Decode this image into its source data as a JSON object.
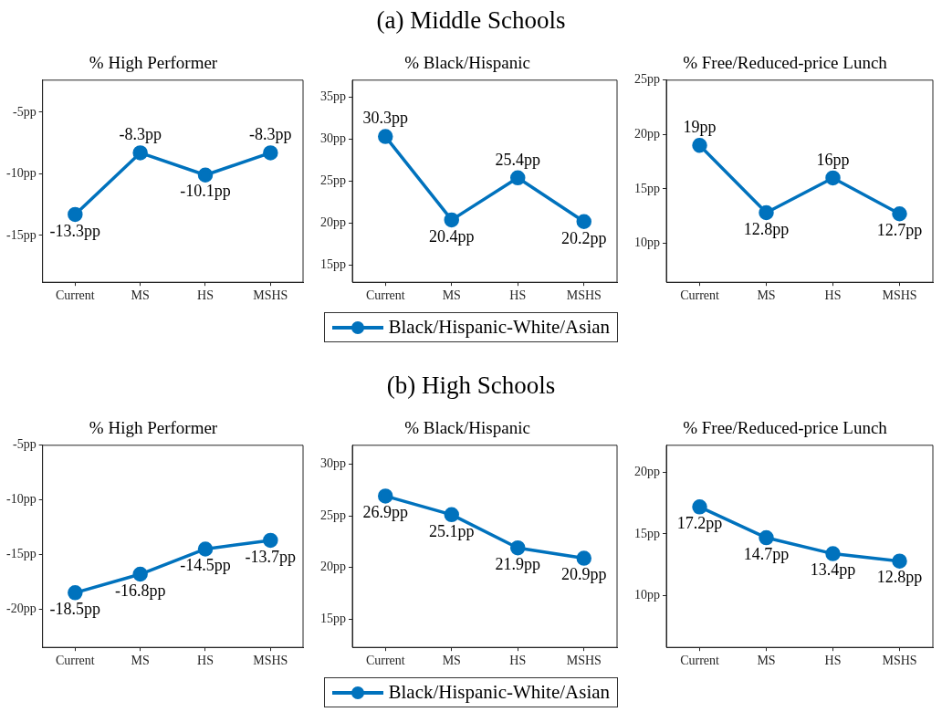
{
  "chart_data": [
    {
      "type": "line",
      "title": "% High Performer",
      "annotations": [
        "(a) Middle Schools"
      ],
      "categories": [
        "Current",
        "MS",
        "HS",
        "MSHS"
      ],
      "marker": "circle",
      "series": [
        {
          "color": "#0072bd",
          "values": [
            -13.3,
            -8.3,
            -10.1,
            -8.3
          ],
          "value_labels": [
            "-13.3pp",
            "-8.3pp",
            "-10.1pp",
            "-8.3pp"
          ]
        }
      ],
      "ylim": [
        -18.8,
        -2.4
      ],
      "yticks": [
        {
          "value": -15,
          "label": "-15pp"
        },
        {
          "value": -10,
          "label": "-10pp"
        },
        {
          "value": -5,
          "label": "-5pp"
        }
      ]
    },
    {
      "type": "line",
      "title": "% Black/Hispanic",
      "categories": [
        "Current",
        "MS",
        "HS",
        "MSHS"
      ],
      "marker": "circle",
      "legend": "bottom",
      "series": [
        {
          "name": "Black/Hispanic-White/Asian",
          "color": "#0072bd",
          "values": [
            30.3,
            20.4,
            25.4,
            20.2
          ],
          "value_labels": [
            "30.3pp",
            "20.4pp",
            "25.4pp",
            "20.2pp"
          ]
        }
      ],
      "ylim": [
        13,
        37
      ],
      "yticks": [
        {
          "value": 15,
          "label": "15pp"
        },
        {
          "value": 20,
          "label": "20pp"
        },
        {
          "value": 25,
          "label": "25pp"
        },
        {
          "value": 30,
          "label": "30pp"
        },
        {
          "value": 35,
          "label": "35pp"
        }
      ]
    },
    {
      "type": "line",
      "title": "% Free/Reduced-price Lunch",
      "categories": [
        "Current",
        "MS",
        "HS",
        "MSHS"
      ],
      "marker": "circle",
      "series": [
        {
          "color": "#0072bd",
          "values": [
            19,
            12.8,
            16,
            12.7
          ],
          "value_labels": [
            "19pp",
            "12.8pp",
            "16pp",
            "12.7pp"
          ]
        }
      ],
      "ylim": [
        6.4,
        25
      ],
      "yticks": [
        {
          "value": 10,
          "label": "10pp"
        },
        {
          "value": 15,
          "label": "15pp"
        },
        {
          "value": 20,
          "label": "20pp"
        },
        {
          "value": 25,
          "label": "25pp"
        }
      ]
    },
    {
      "type": "line",
      "title": "% High Performer",
      "annotations": [
        "(b) High Schools"
      ],
      "categories": [
        "Current",
        "MS",
        "HS",
        "MSHS"
      ],
      "marker": "circle",
      "series": [
        {
          "color": "#0072bd",
          "values": [
            -18.5,
            -16.8,
            -14.5,
            -13.7
          ],
          "value_labels": [
            "-18.5pp",
            "-16.8pp",
            "-14.5pp",
            "-13.7pp"
          ]
        }
      ],
      "ylim": [
        -23.5,
        -5
      ],
      "yticks": [
        {
          "value": -20,
          "label": "-20pp"
        },
        {
          "value": -15,
          "label": "-15pp"
        },
        {
          "value": -10,
          "label": "-10pp"
        },
        {
          "value": -5,
          "label": "-5pp"
        }
      ]
    },
    {
      "type": "line",
      "title": "% Black/Hispanic",
      "categories": [
        "Current",
        "MS",
        "HS",
        "MSHS"
      ],
      "marker": "circle",
      "legend": "bottom",
      "series": [
        {
          "name": "Black/Hispanic-White/Asian",
          "color": "#0072bd",
          "values": [
            26.9,
            25.1,
            21.9,
            20.9
          ],
          "value_labels": [
            "26.9pp",
            "25.1pp",
            "21.9pp",
            "20.9pp"
          ]
        }
      ],
      "ylim": [
        12.3,
        31.8
      ],
      "yticks": [
        {
          "value": 15,
          "label": "15pp"
        },
        {
          "value": 20,
          "label": "20pp"
        },
        {
          "value": 25,
          "label": "25pp"
        },
        {
          "value": 30,
          "label": "30pp"
        }
      ]
    },
    {
      "type": "line",
      "title": "% Free/Reduced-price Lunch",
      "categories": [
        "Current",
        "MS",
        "HS",
        "MSHS"
      ],
      "marker": "circle",
      "series": [
        {
          "color": "#0072bd",
          "values": [
            17.2,
            14.7,
            13.4,
            12.8
          ],
          "value_labels": [
            "17.2pp",
            "14.7pp",
            "13.4pp",
            "12.8pp"
          ]
        }
      ],
      "ylim": [
        5.8,
        22.2
      ],
      "yticks": [
        {
          "value": 10,
          "label": "10pp"
        },
        {
          "value": 15,
          "label": "15pp"
        },
        {
          "value": 20,
          "label": "20pp"
        }
      ]
    }
  ]
}
